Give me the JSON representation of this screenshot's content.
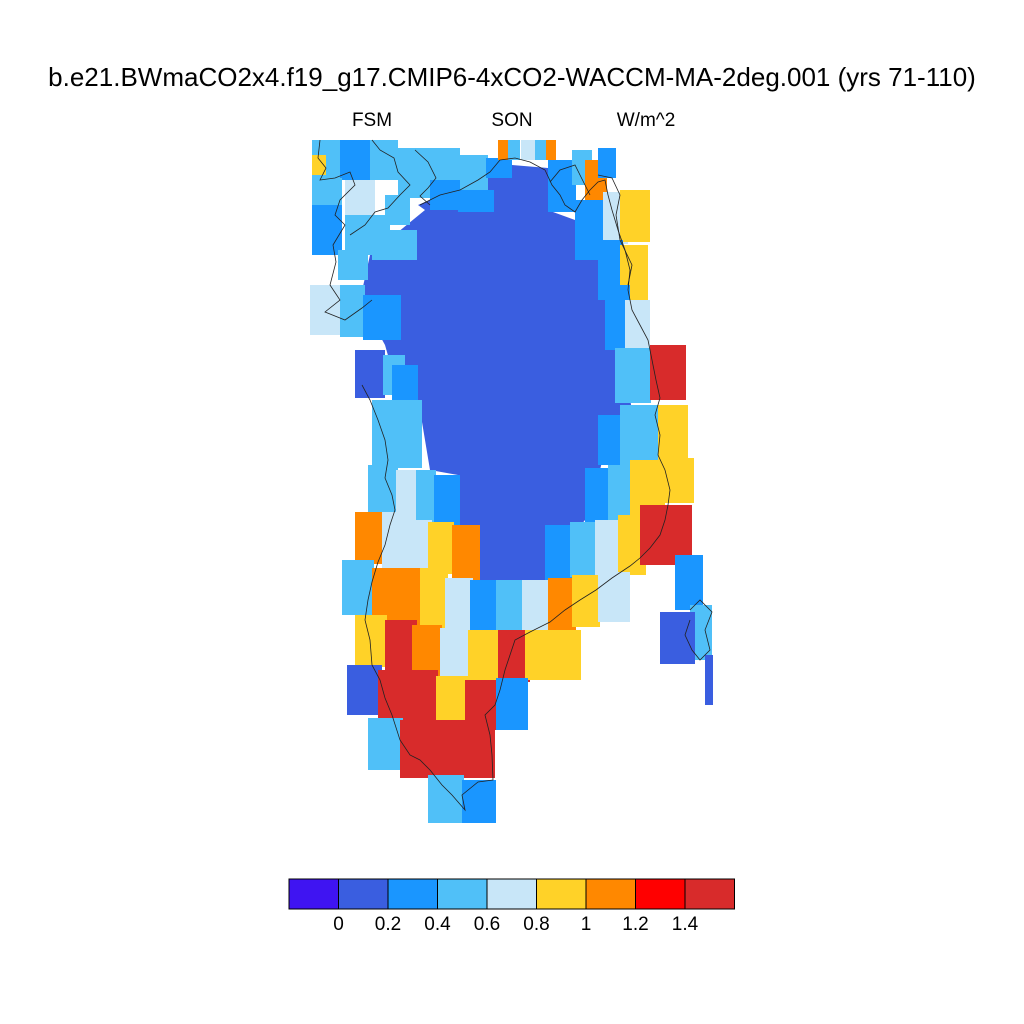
{
  "title": "b.e21.BWmaCO2x4.f19_g17.CMIP6-4xCO2-WACCM-MA-2deg.001 (yrs 71-110)",
  "left_label": "FSM",
  "center_label": "SON",
  "right_label": "W/m^2",
  "colorbar": {
    "colors": [
      "#3f14f2",
      "#3a5ee0",
      "#1a96ff",
      "#50c0f8",
      "#c8e6f8",
      "#ffd228",
      "#ff8800",
      "#ff0000",
      "#d82b2b"
    ],
    "labels": [
      "0",
      "0.2",
      "0.4",
      "0.6",
      "0.8",
      "1",
      "1.2",
      "1.4"
    ]
  }
}
